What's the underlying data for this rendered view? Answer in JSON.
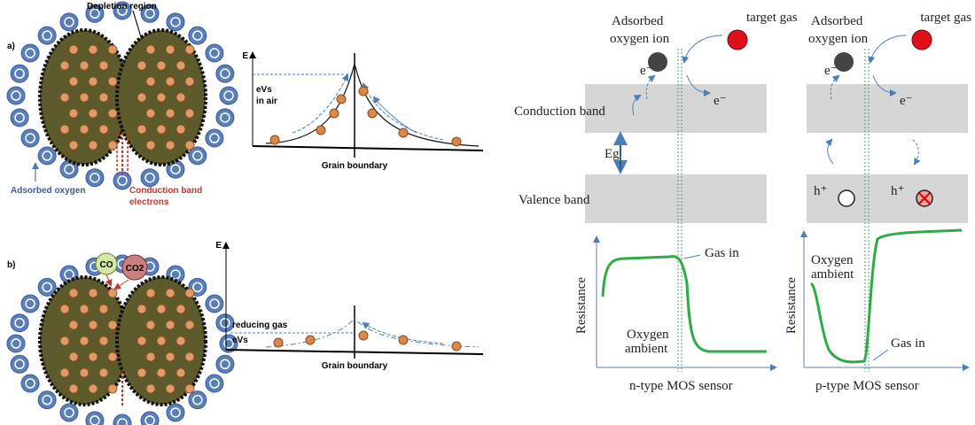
{
  "panel_a": {
    "label": "a)",
    "depletion_region": "Depletion region",
    "energy_axis": "E",
    "barrier_line1": "eVs",
    "barrier_line2": "in air",
    "grain_boundary": "Grain boundary",
    "adsorbed_oxygen": "Adsorbed oxygen",
    "conduction_electrons_line1": "Conduction band",
    "conduction_electrons_line2": "electrons"
  },
  "panel_b": {
    "label": "b)",
    "gas_1": "CO",
    "gas_2": "CO2",
    "energy_axis": "E",
    "reducing_gas": "reducing gas",
    "barrier": "eVs",
    "grain_boundary": "Grain boundary"
  },
  "bands": {
    "conduction_band": "Conduction band",
    "band_gap": "Eg",
    "valence_band": "Valence band"
  },
  "n_type": {
    "adsorbed_line1": "Adsorbed",
    "adsorbed_line2": "oxygen ion",
    "target_gas": "target gas",
    "electron_1": "e⁻",
    "electron_2": "e⁻",
    "resistance_axis": "Resistance",
    "gas_in": "Gas in",
    "ambient_line1": "Oxygen",
    "ambient_line2": "ambient",
    "caption": "n-type MOS sensor"
  },
  "p_type": {
    "adsorbed_line1": "Adsorbed",
    "adsorbed_line2": "oxygen ion",
    "target_gas": "target gas",
    "electron_1": "e⁻",
    "electron_2": "e⁻",
    "hole_1": "h⁺",
    "hole_2": "h⁺",
    "resistance_axis": "Resistance",
    "gas_in": "Gas in",
    "ambient_line1": "Oxygen",
    "ambient_line2": "ambient",
    "caption": "p-type MOS sensor"
  }
}
